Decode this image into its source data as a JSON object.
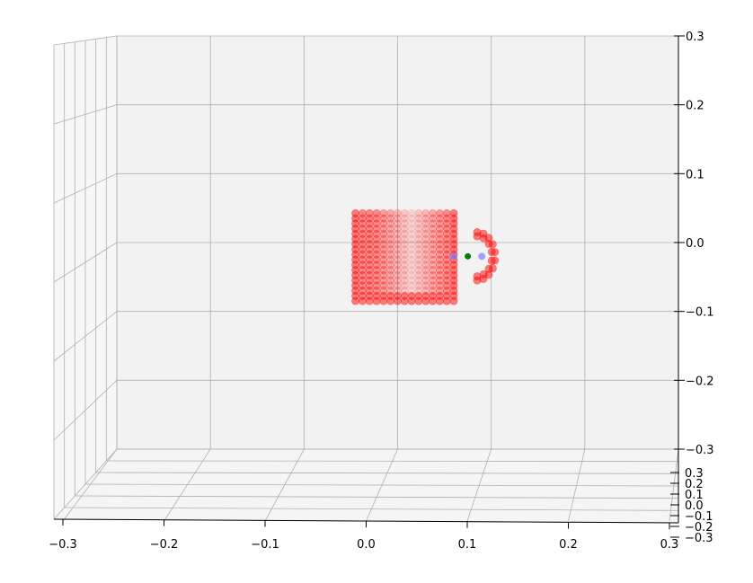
{
  "chart_data": {
    "type": "scatter",
    "projection": "3d",
    "title": "",
    "xlabel": "",
    "ylabel": "",
    "zlabel": "",
    "xlim": [
      -0.3,
      0.3
    ],
    "ylim": [
      -0.3,
      0.3
    ],
    "zlim": [
      -0.3,
      0.3
    ],
    "grid": true,
    "x_ticks": [
      "−0.3",
      "−0.2",
      "−0.1",
      "0.0",
      "0.1",
      "0.2",
      "0.3"
    ],
    "y_ticks": [
      "−0.3",
      "−0.2",
      "−0.1",
      "0.0",
      "0.1",
      "0.2",
      "0.3"
    ],
    "z_ticks": [
      "−0.3",
      "−0.2",
      "−0.1",
      "0.0",
      "0.1",
      "0.2",
      "0.3"
    ],
    "series": [
      {
        "role": "mug point cloud",
        "color": "#ff0000",
        "marker": "o",
        "alpha": 0.45,
        "body": {
          "x_range": [
            -0.045,
            0.06
          ],
          "z_range": [
            -0.085,
            0.045
          ],
          "spacing": 0.0075
        },
        "handle": {
          "center": [
            0.085,
            -0.02
          ],
          "outer_radius": 0.035,
          "inner_radius": 0.022
        }
      },
      {
        "role": "handle contact points",
        "color": "#8080ff",
        "marker": "o",
        "points": [
          [
            0.06,
            -0.02
          ],
          [
            0.09,
            -0.02
          ]
        ]
      },
      {
        "role": "grasp point",
        "color": "#008000",
        "marker": "o",
        "points": [
          [
            0.075,
            -0.02
          ]
        ]
      }
    ]
  }
}
